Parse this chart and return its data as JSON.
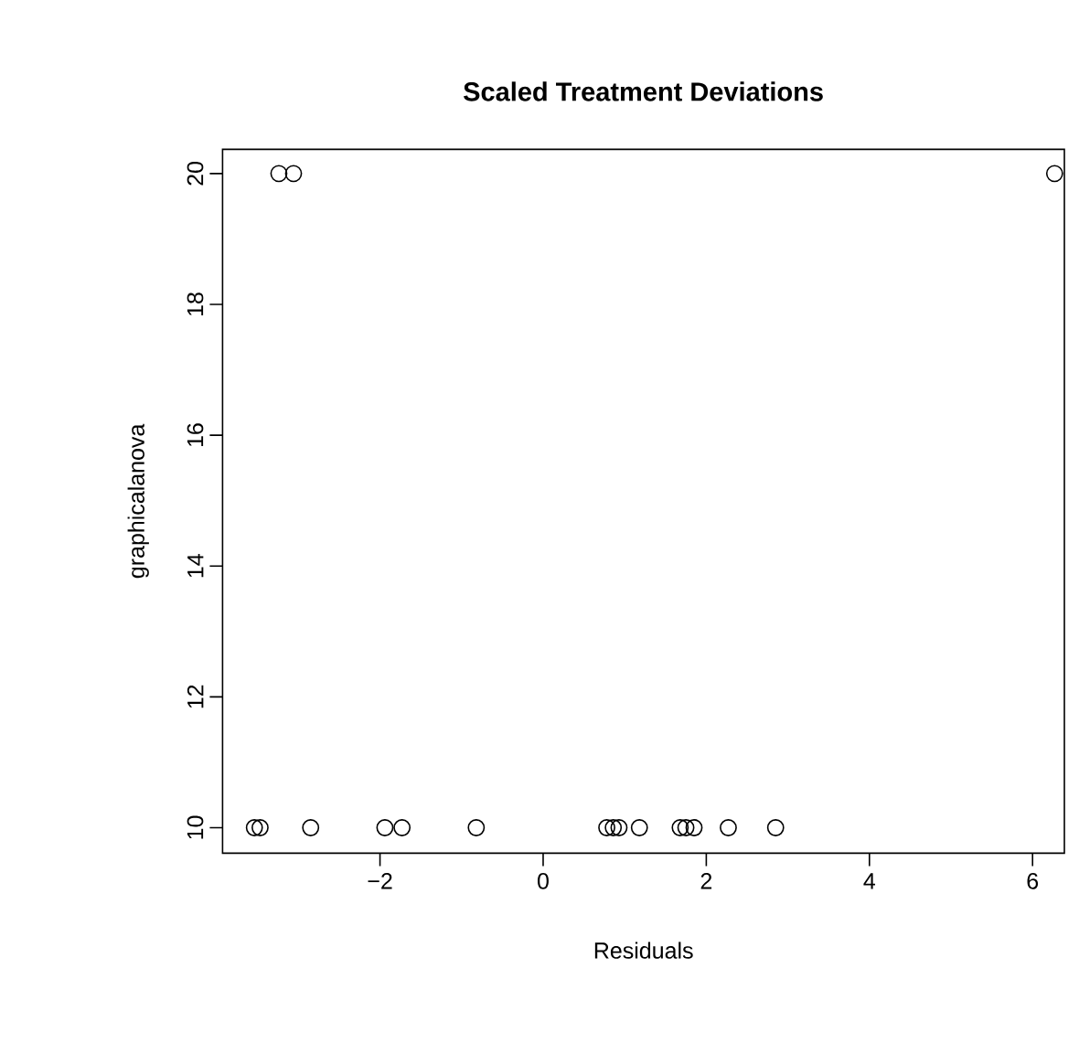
{
  "chart_data": {
    "type": "scatter",
    "title": "Scaled Treatment Deviations",
    "xlabel": "Residuals",
    "ylabel": "graphicalanova",
    "series": [
      {
        "color": "#000000",
        "x": [
          -3.54,
          -3.47,
          -2.85,
          -1.94,
          -1.73,
          -0.82,
          0.78,
          0.86,
          0.93,
          1.18,
          1.68,
          1.75,
          1.85,
          2.27,
          2.85,
          -3.24,
          -3.06,
          6.27
        ],
        "values": [
          10,
          10,
          10,
          10,
          10,
          10,
          10,
          10,
          10,
          10,
          10,
          10,
          10,
          10,
          10,
          20,
          20,
          20
        ]
      }
    ],
    "xlim": [
      -3.93,
      6.39
    ],
    "ylim": [
      9.61,
      20.37
    ],
    "xticks": [
      {
        "value": -2,
        "label": "−2"
      },
      0,
      2,
      4,
      6
    ],
    "yticks": [
      10,
      12,
      14,
      16,
      18,
      20
    ],
    "marker": "circle",
    "grid": false
  }
}
